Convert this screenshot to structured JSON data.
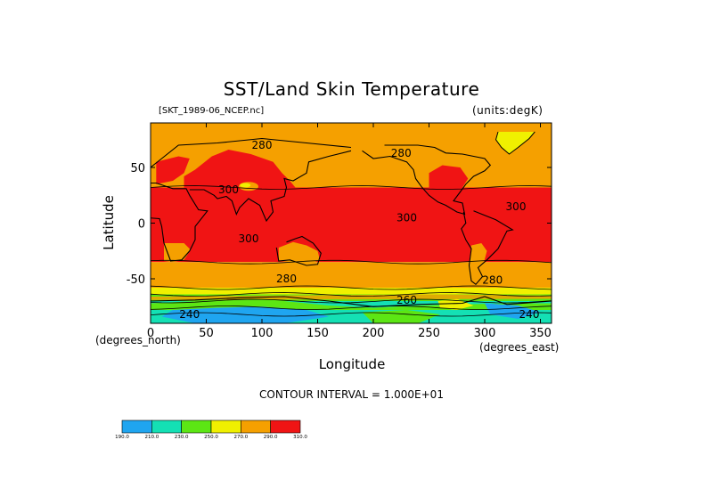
{
  "title": "SST/Land Skin Temperature",
  "dataset_label": "[SKT_1989-06_NCEP.nc]",
  "units_label": "(units:degK)",
  "xlabel": "Longitude",
  "ylabel": "Latitude",
  "x_unit_label": "(degrees_north)",
  "y_unit_label": "(degrees_east)",
  "contour_interval_label": "CONTOUR INTERVAL = 1.000E+01",
  "colors": {
    "c190": "#1fa5f0",
    "c210": "#14e0b4",
    "c230": "#5ce614",
    "c250": "#f0f000",
    "c270": "#f5a000",
    "c290": "#f01414"
  },
  "chart_data": {
    "type": "heatmap",
    "title": "SST/Land Skin Temperature",
    "xlabel": "Longitude",
    "ylabel": "Latitude",
    "xlim": [
      0,
      360
    ],
    "ylim": [
      -90,
      90
    ],
    "x_ticks": [
      0,
      50,
      100,
      150,
      200,
      250,
      300,
      350
    ],
    "y_ticks": [
      -50,
      0,
      50
    ],
    "contour_labels": [
      {
        "text": "280",
        "lon": 100,
        "lat": 70
      },
      {
        "text": "280",
        "lon": 225,
        "lat": 63
      },
      {
        "text": "300",
        "lon": 70,
        "lat": 30
      },
      {
        "text": "300",
        "lon": 230,
        "lat": 5
      },
      {
        "text": "300",
        "lon": 328,
        "lat": 15
      },
      {
        "text": "300",
        "lon": 88,
        "lat": -14
      },
      {
        "text": "280",
        "lon": 122,
        "lat": -50
      },
      {
        "text": "280",
        "lon": 307,
        "lat": -51
      },
      {
        "text": "260",
        "lon": 230,
        "lat": -69
      },
      {
        "text": "240",
        "lon": 35,
        "lat": -82
      },
      {
        "text": "240",
        "lon": 340,
        "lat": -82
      }
    ],
    "colorbar": {
      "levels": [
        "190.0",
        "210.0",
        "230.0",
        "250.0",
        "270.0",
        "290.0",
        "310.0"
      ],
      "colors": [
        "#1fa5f0",
        "#14e0b4",
        "#5ce614",
        "#f0f000",
        "#f5a000",
        "#f01414"
      ]
    },
    "bands": [
      {
        "lat_max": 90,
        "lat_min": 32,
        "value": 280
      },
      {
        "lat_max": 32,
        "lat_min": -35,
        "value": 300
      },
      {
        "lat_max": -35,
        "lat_min": -58,
        "value": 280
      },
      {
        "lat_max": -58,
        "lat_min": -64,
        "value": 260
      },
      {
        "lat_max": -64,
        "lat_min": -90,
        "value": 230
      }
    ]
  }
}
